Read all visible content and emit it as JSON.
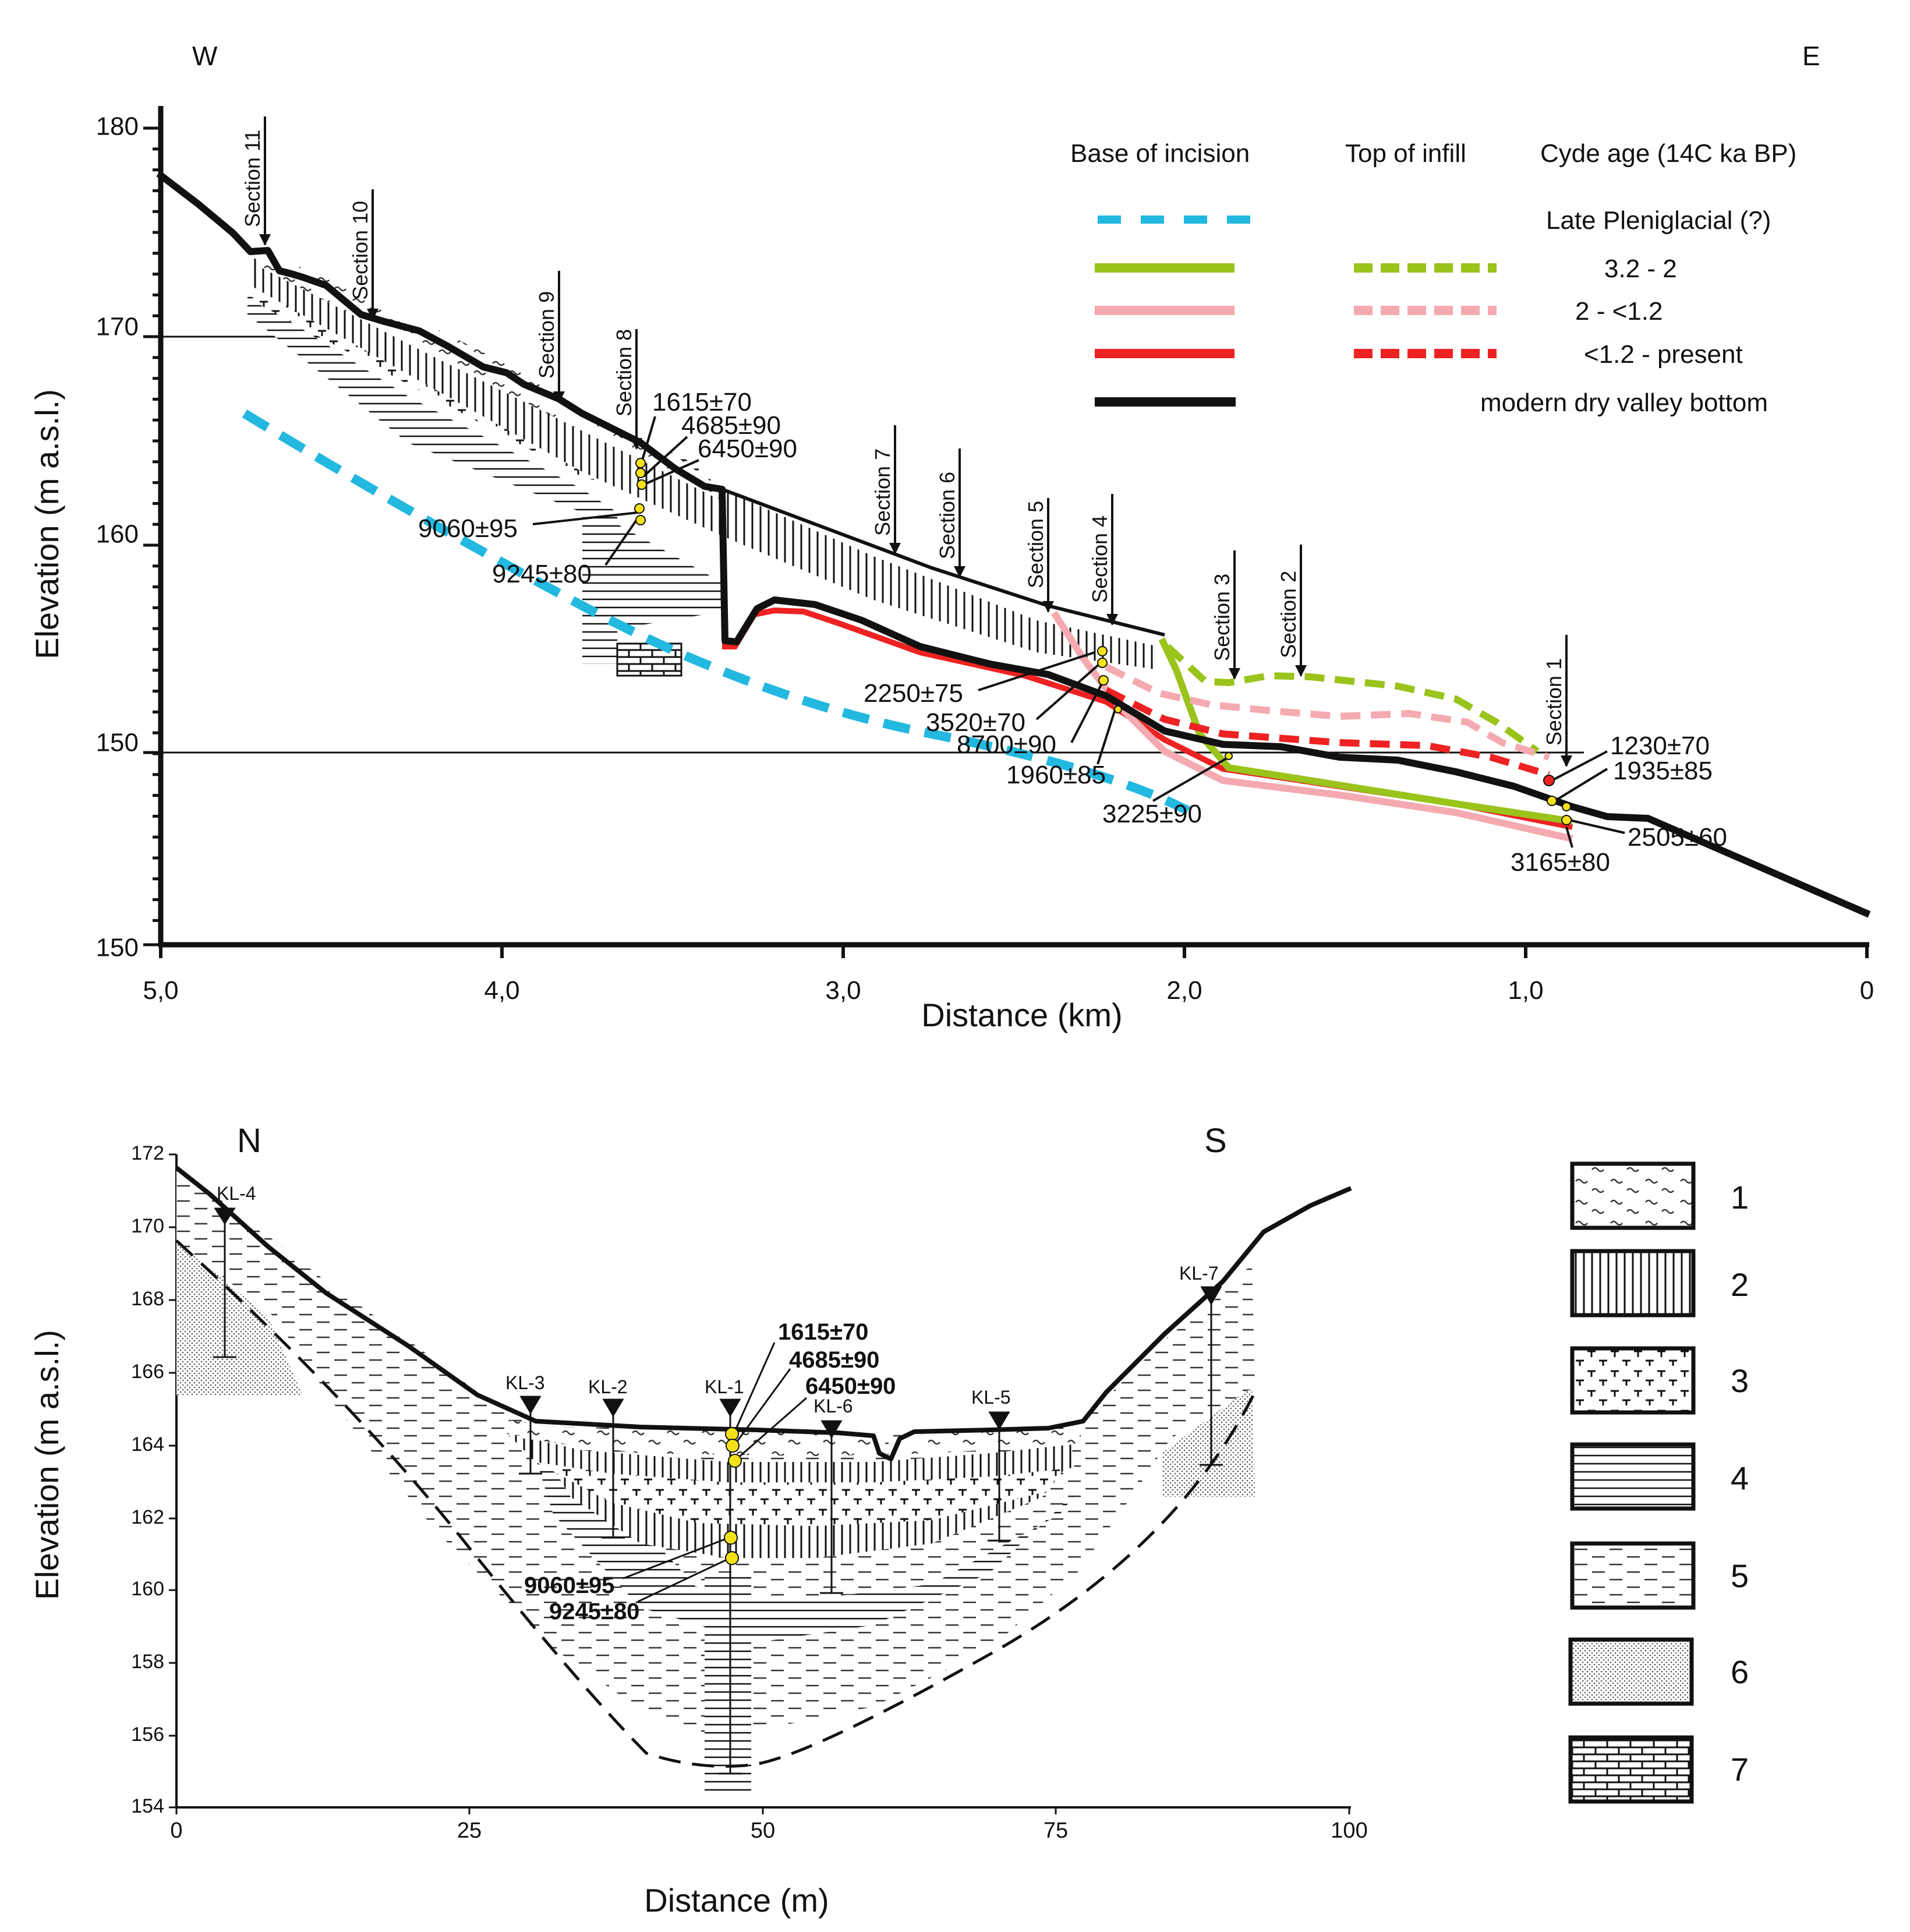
{
  "colors": {
    "cyan": "#22b8e0",
    "green": "#9ac31c",
    "pink": "#f4aab0",
    "red": "#ee2222",
    "black": "#111111",
    "marker": "#f3e21a"
  },
  "top_panel": {
    "direction_west": "W",
    "direction_east": "E",
    "y_axis_label": "Elevation (m a.s.l.)",
    "x_axis_label": "Distance (km)",
    "y_ticks": [
      "180",
      "170",
      "160",
      "150",
      "150"
    ],
    "x_ticks": [
      "5,0",
      "4,0",
      "3,0",
      "2,0",
      "1,0",
      "0"
    ],
    "sections": [
      "Section 11",
      "Section 10",
      "Section 9",
      "Section 8",
      "Section 7",
      "Section 6",
      "Section 5",
      "Section 4",
      "Section 3",
      "Section 2",
      "Section 1"
    ],
    "legend": {
      "col_base": "Base of incision",
      "col_top": "Top of infill",
      "col_age": "Cyde age (14C ka BP)",
      "rows": [
        {
          "label": "Late Pleniglacial (?)",
          "color": "#22b8e0"
        },
        {
          "label": "3.2 - 2",
          "color": "#9ac31c"
        },
        {
          "label": "2 - <1.2",
          "color": "#f4aab0"
        },
        {
          "label": "<1.2 - present",
          "color": "#ee2222"
        },
        {
          "label": "modern dry valley bottom",
          "color": "#111111"
        }
      ]
    },
    "dates": [
      "1615±70",
      "4685±90",
      "6450±90",
      "9060±95",
      "9245±80",
      "2250±75",
      "3520±70",
      "8700±90",
      "1960±85",
      "3225±90",
      "1230±70",
      "1935±85",
      "2505±60",
      "3165±80"
    ]
  },
  "bottom_panel": {
    "direction_north": "N",
    "direction_south": "S",
    "y_axis_label": "Elevation (m a.s.l.)",
    "x_axis_label": "Distance (m)",
    "y_ticks": [
      "172",
      "170",
      "168",
      "166",
      "164",
      "162",
      "160",
      "158",
      "156",
      "154"
    ],
    "x_ticks": [
      "0",
      "25",
      "50",
      "75",
      "100"
    ],
    "boreholes": [
      "KL-4",
      "KL-3",
      "KL-2",
      "KL-1",
      "KL-6",
      "KL-5",
      "KL-7"
    ],
    "dates": [
      "1615±70",
      "4685±90",
      "6450±90",
      "9060±95",
      "9245±80"
    ]
  },
  "units_legend": [
    "1",
    "2",
    "3",
    "4",
    "5",
    "6",
    "7"
  ]
}
